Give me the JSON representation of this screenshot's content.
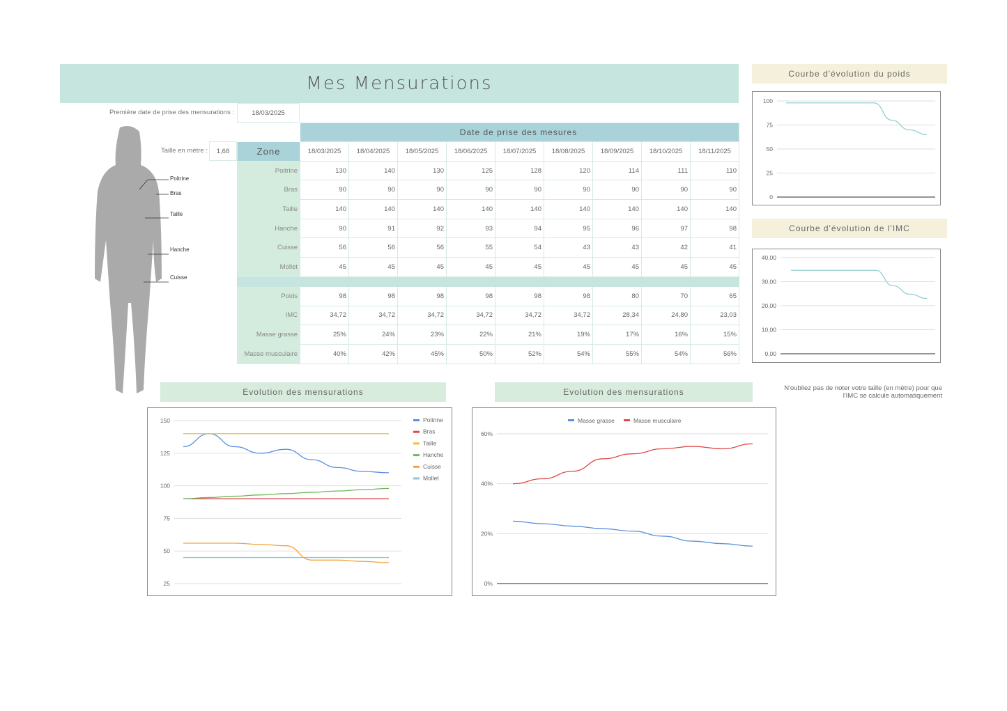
{
  "title": "Mes Mensurations",
  "first_date": {
    "label": "Première date de prise des mensurations :",
    "value": "18/03/2025"
  },
  "height": {
    "label": "Taille en mètre :",
    "value": "1,68"
  },
  "body_labels": [
    "Poitrine",
    "Bras",
    "Taille",
    "Hanche",
    "Cuisse"
  ],
  "table": {
    "header": "Date de prise des mesures",
    "zone_label": "Zone",
    "dates": [
      "18/03/2025",
      "18/04/2025",
      "18/05/2025",
      "18/06/2025",
      "18/07/2025",
      "18/08/2025",
      "18/09/2025",
      "18/10/2025",
      "18/11/2025"
    ],
    "rows": [
      {
        "label": "Poitrine",
        "values": [
          "130",
          "140",
          "130",
          "125",
          "128",
          "120",
          "114",
          "111",
          "110"
        ]
      },
      {
        "label": "Bras",
        "values": [
          "90",
          "90",
          "90",
          "90",
          "90",
          "90",
          "90",
          "90",
          "90"
        ]
      },
      {
        "label": "Taille",
        "values": [
          "140",
          "140",
          "140",
          "140",
          "140",
          "140",
          "140",
          "140",
          "140"
        ]
      },
      {
        "label": "Hanche",
        "values": [
          "90",
          "91",
          "92",
          "93",
          "94",
          "95",
          "96",
          "97",
          "98"
        ]
      },
      {
        "label": "Cuisse",
        "values": [
          "56",
          "56",
          "56",
          "55",
          "54",
          "43",
          "43",
          "42",
          "41"
        ]
      },
      {
        "label": "Mollet",
        "values": [
          "45",
          "45",
          "45",
          "45",
          "45",
          "45",
          "45",
          "45",
          "45"
        ]
      }
    ],
    "rows2": [
      {
        "label": "Poids",
        "values": [
          "98",
          "98",
          "98",
          "98",
          "98",
          "98",
          "80",
          "70",
          "65"
        ]
      },
      {
        "label": "IMC",
        "values": [
          "34,72",
          "34,72",
          "34,72",
          "34,72",
          "34,72",
          "34,72",
          "28,34",
          "24,80",
          "23,03"
        ]
      },
      {
        "label": "Masse grasse",
        "values": [
          "25%",
          "24%",
          "23%",
          "22%",
          "21%",
          "19%",
          "17%",
          "16%",
          "15%"
        ]
      },
      {
        "label": "Masse musculaire",
        "values": [
          "40%",
          "42%",
          "45%",
          "50%",
          "52%",
          "54%",
          "55%",
          "54%",
          "56%"
        ]
      }
    ]
  },
  "sections": {
    "weight": "Courbe d'évolution du poids",
    "imc": "Courbe d'évolution de l'IMC",
    "mens1": "Evolution des mensurations",
    "mens2": "Evolution des mensurations"
  },
  "note": "N'oubliez pas de noter votre taille (en mètre) pour que l'IMC se calcule automatiquement",
  "chart_data": [
    {
      "type": "line",
      "title": "Courbe d'évolution du poids",
      "ylim": [
        0,
        100
      ],
      "yticks": [
        "0",
        "25",
        "50",
        "75",
        "100"
      ],
      "series": [
        {
          "name": "Poids",
          "color": "#93cdd1",
          "values": [
            98,
            98,
            98,
            98,
            98,
            98,
            80,
            70,
            65
          ]
        }
      ]
    },
    {
      "type": "line",
      "title": "Courbe d'évolution de l'IMC",
      "ylim": [
        0,
        40
      ],
      "yticks": [
        "0,00",
        "10,00",
        "20,00",
        "30,00",
        "40,00"
      ],
      "series": [
        {
          "name": "IMC",
          "color": "#93cdd1",
          "values": [
            34.72,
            34.72,
            34.72,
            34.72,
            34.72,
            34.72,
            28.34,
            24.8,
            23.03
          ]
        }
      ]
    },
    {
      "type": "line",
      "title": "Evolution des mensurations",
      "ylim": [
        25,
        150
      ],
      "yticks": [
        "25",
        "50",
        "75",
        "100",
        "125",
        "150"
      ],
      "legend": "right",
      "series": [
        {
          "name": "Poitrine",
          "color": "#5b8fe0",
          "values": [
            130,
            140,
            130,
            125,
            128,
            120,
            114,
            111,
            110
          ]
        },
        {
          "name": "Bras",
          "color": "#e04848",
          "values": [
            90,
            90,
            90,
            90,
            90,
            90,
            90,
            90,
            90
          ]
        },
        {
          "name": "Taille",
          "color": "#f2c12e",
          "values": [
            140,
            140,
            140,
            140,
            140,
            140,
            140,
            140,
            140
          ]
        },
        {
          "name": "Hanche",
          "color": "#6ab85a",
          "values": [
            90,
            91,
            92,
            93,
            94,
            95,
            96,
            97,
            98
          ]
        },
        {
          "name": "Cuisse",
          "color": "#f2a33e",
          "values": [
            56,
            56,
            56,
            55,
            54,
            43,
            43,
            42,
            41
          ]
        },
        {
          "name": "Mollet",
          "color": "#8ec4d6",
          "values": [
            45,
            45,
            45,
            45,
            45,
            45,
            45,
            45,
            45
          ]
        }
      ]
    },
    {
      "type": "line",
      "title": "Evolution des mensurations",
      "ylim": [
        0,
        60
      ],
      "yticks": [
        "0%",
        "20%",
        "40%",
        "60%"
      ],
      "legend": "top",
      "series": [
        {
          "name": "Masse grasse",
          "color": "#5b8fe0",
          "values": [
            25,
            24,
            23,
            22,
            21,
            19,
            17,
            16,
            15
          ]
        },
        {
          "name": "Masse musculaire",
          "color": "#e04848",
          "values": [
            40,
            42,
            45,
            50,
            52,
            54,
            55,
            54,
            56
          ]
        }
      ]
    }
  ]
}
